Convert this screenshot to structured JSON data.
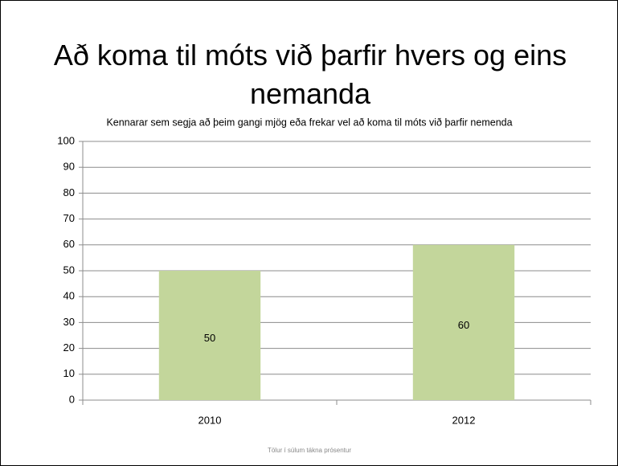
{
  "chart_data": {
    "type": "bar",
    "title": "Að koma til móts við þarfir hvers og eins nemanda",
    "subtitle": "Kennarar sem segja að þeim gangi mjög eða frekar vel að koma til móts við þarfir nemenda",
    "categories": [
      "2010",
      "2012"
    ],
    "values": [
      50,
      60
    ],
    "color": "#c3d69b",
    "ylim": [
      0,
      100
    ],
    "yticks": [
      0,
      10,
      20,
      30,
      40,
      50,
      60,
      70,
      80,
      90,
      100
    ],
    "grid": true,
    "footnote": "Tölur í súlum tákna prósentur"
  }
}
